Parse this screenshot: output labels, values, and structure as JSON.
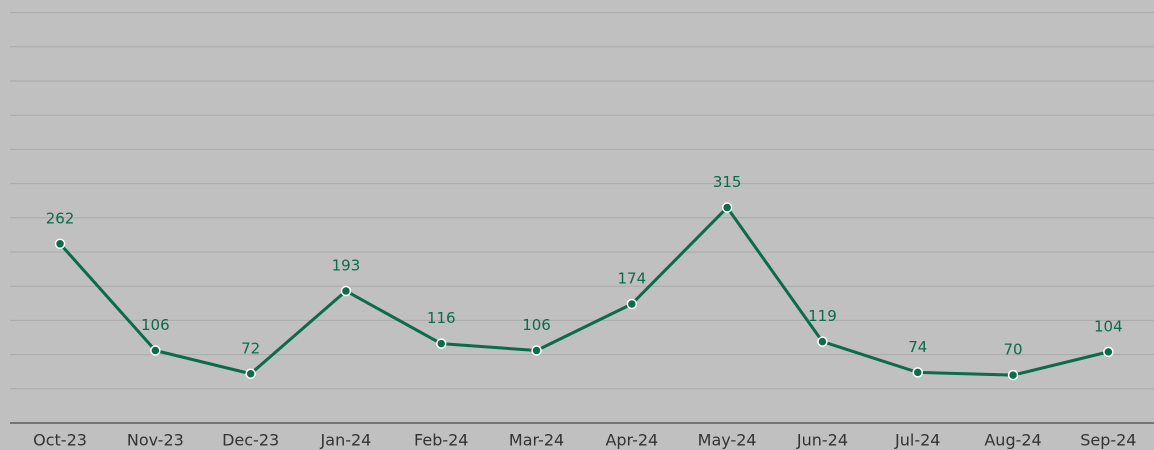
{
  "chart_data": {
    "type": "line",
    "categories": [
      "Oct-23",
      "Nov-23",
      "Dec-23",
      "Jan-24",
      "Feb-24",
      "Mar-24",
      "Apr-24",
      "May-24",
      "Jun-24",
      "Jul-24",
      "Aug-24",
      "Sep-24"
    ],
    "values": [
      262,
      106,
      72,
      193,
      116,
      106,
      174,
      315,
      119,
      74,
      70,
      104
    ],
    "color": "#0b6b4a",
    "ylim": [
      0,
      600
    ],
    "yticks": [
      0,
      50,
      100,
      150,
      200,
      250,
      300,
      350,
      400,
      450,
      500,
      550,
      600
    ],
    "grid": true
  }
}
